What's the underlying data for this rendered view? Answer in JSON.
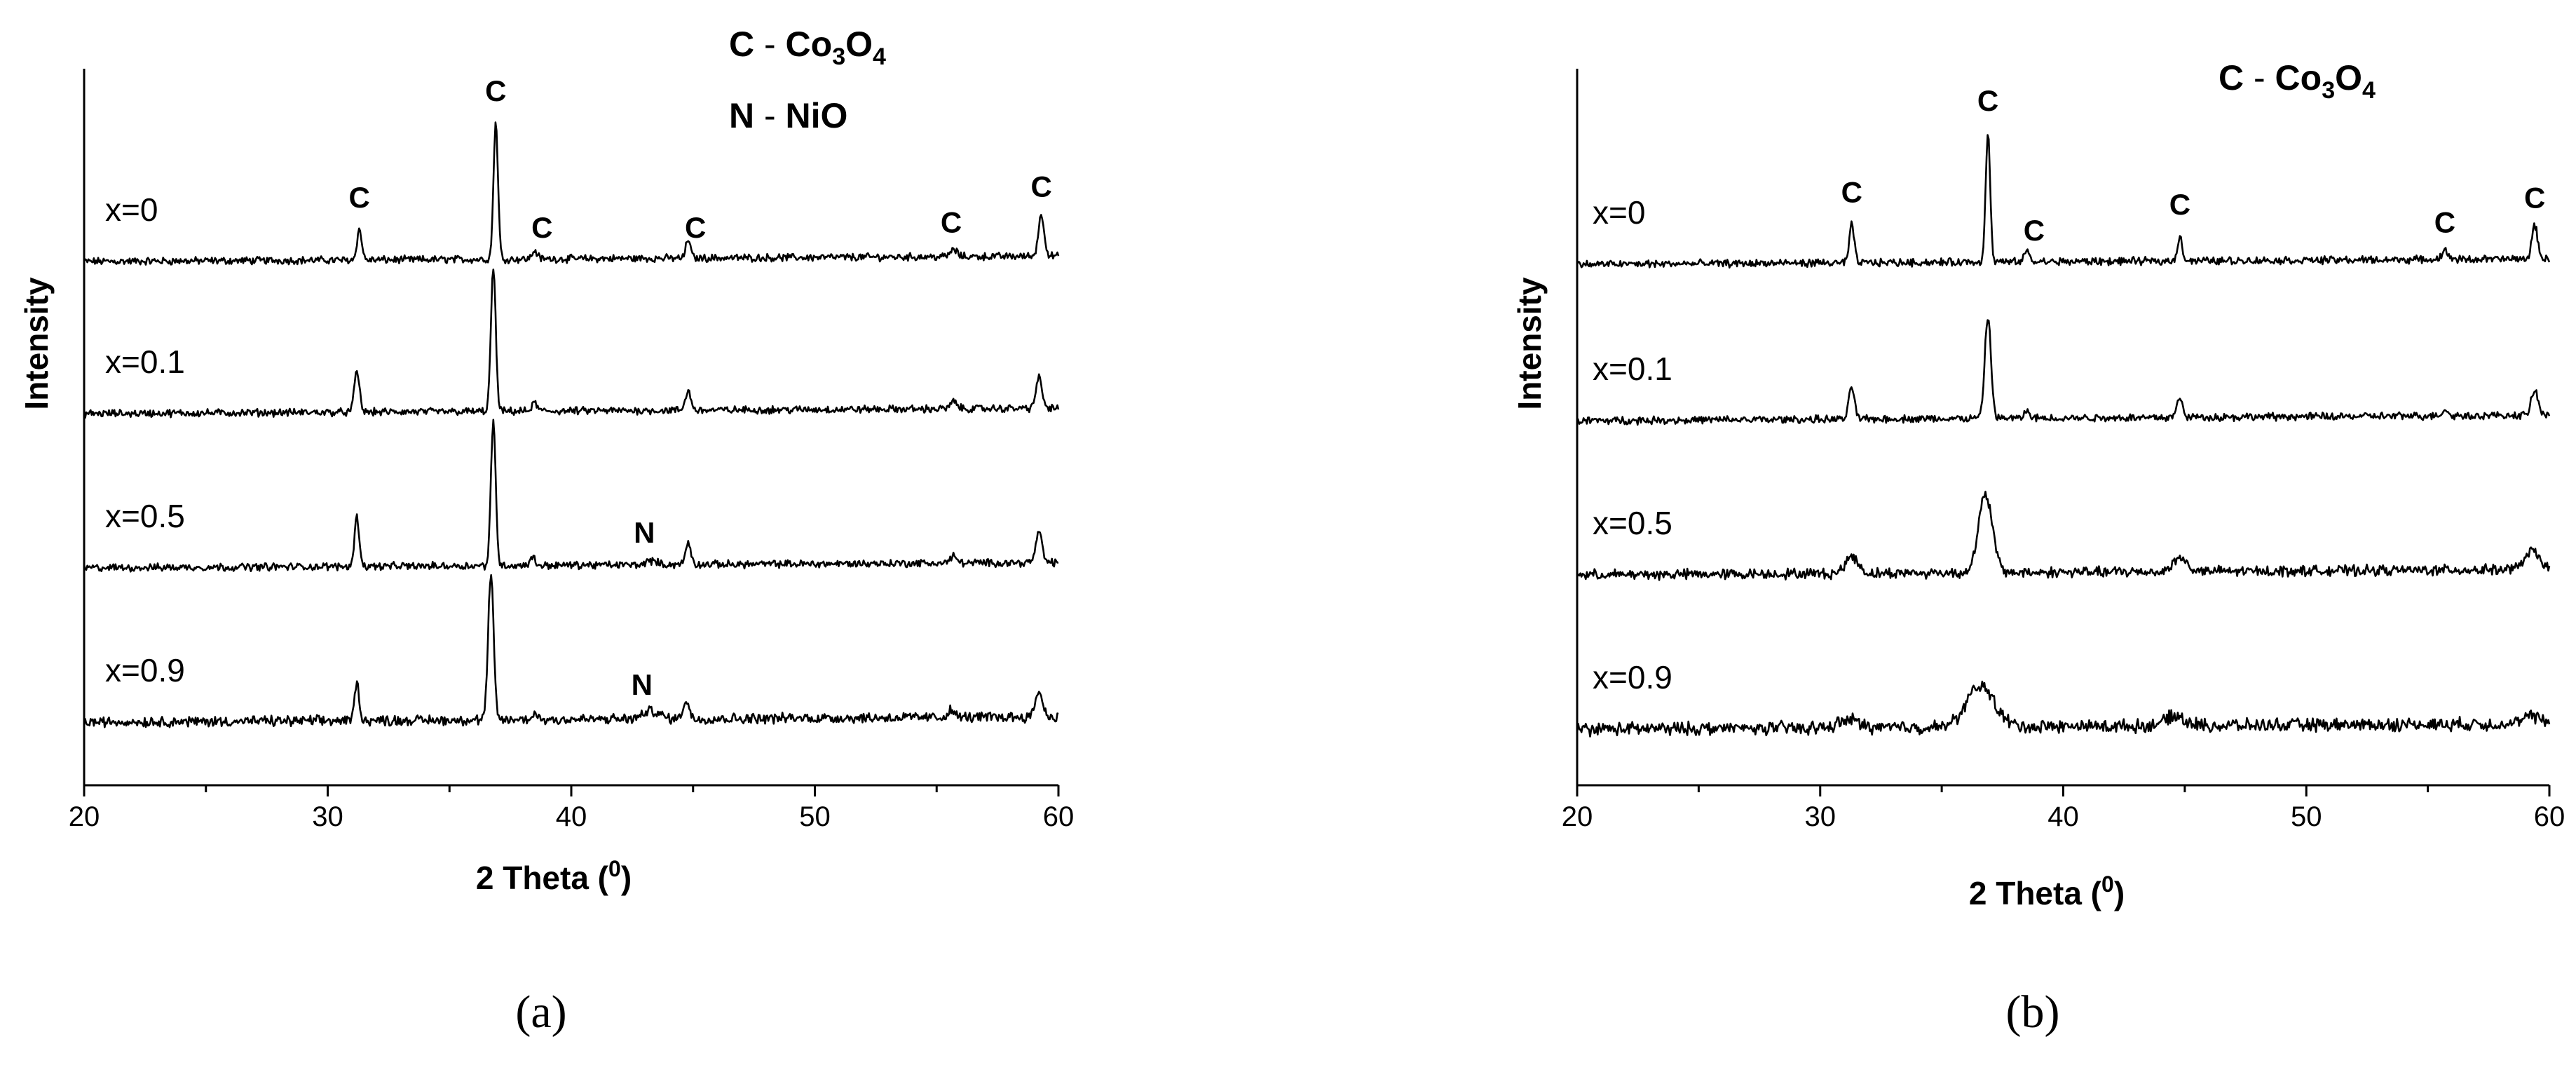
{
  "chart_data": [
    {
      "type": "line",
      "panel": "(a)",
      "caption": "(a)",
      "xlabel": "2 Theta (",
      "xlabel_sup": "0",
      "xlabel_end": ")",
      "ylabel": "Intensity",
      "xlim": [
        20,
        60
      ],
      "xticks": [
        20,
        30,
        40,
        50,
        60
      ],
      "yticks": "none",
      "legend": [
        {
          "letter": "C",
          "dash": " - ",
          "formula": [
            [
              "Co",
              ""
            ],
            [
              "3",
              "sub"
            ],
            [
              "O",
              ""
            ],
            [
              "4",
              "sub"
            ]
          ]
        },
        {
          "letter": "N",
          "dash": " - ",
          "formula": [
            [
              "NiO",
              ""
            ]
          ]
        }
      ],
      "series": [
        {
          "name": "x=0",
          "offset": 3,
          "noise": 0.022,
          "peaks": [
            [
              31.3,
              0.22,
              0.14
            ],
            [
              36.9,
              1.0,
              0.13
            ],
            [
              38.5,
              0.06,
              0.15
            ],
            [
              44.8,
              0.14,
              0.13
            ],
            [
              55.7,
              0.05,
              0.2
            ],
            [
              59.3,
              0.3,
              0.17
            ]
          ],
          "labels": [
            [
              "C",
              31.3
            ],
            [
              "C",
              36.9
            ],
            [
              "C",
              38.8
            ],
            [
              "C",
              45.1
            ],
            [
              "C",
              55.6
            ],
            [
              "C",
              59.3
            ]
          ]
        },
        {
          "name": "x=0.1",
          "offset": 2,
          "noise": 0.022,
          "peaks": [
            [
              31.2,
              0.3,
              0.15
            ],
            [
              36.8,
              1.05,
              0.14
            ],
            [
              38.5,
              0.06,
              0.15
            ],
            [
              44.8,
              0.14,
              0.16
            ],
            [
              55.7,
              0.05,
              0.2
            ],
            [
              59.2,
              0.22,
              0.18
            ]
          ],
          "labels": []
        },
        {
          "name": "x=0.5",
          "offset": 1,
          "noise": 0.022,
          "peaks": [
            [
              31.2,
              0.36,
              0.14
            ],
            [
              36.8,
              1.05,
              0.14
            ],
            [
              38.4,
              0.06,
              0.15
            ],
            [
              43.3,
              0.03,
              0.3
            ],
            [
              44.8,
              0.16,
              0.15
            ],
            [
              55.7,
              0.05,
              0.2
            ],
            [
              59.2,
              0.22,
              0.18
            ]
          ],
          "labels": [
            [
              "N",
              43.0
            ]
          ]
        },
        {
          "name": "x=0.9",
          "offset": 0,
          "noise": 0.03,
          "peaks": [
            [
              31.2,
              0.27,
              0.14
            ],
            [
              36.7,
              1.05,
              0.16
            ],
            [
              38.5,
              0.05,
              0.15
            ],
            [
              43.3,
              0.06,
              0.45
            ],
            [
              44.7,
              0.13,
              0.18
            ],
            [
              55.6,
              0.05,
              0.2
            ],
            [
              59.2,
              0.19,
              0.2
            ]
          ],
          "labels": [
            [
              "N",
              42.9
            ]
          ]
        }
      ]
    },
    {
      "type": "line",
      "panel": "(b)",
      "caption": "(b)",
      "xlabel": "2 Theta (",
      "xlabel_sup": "0",
      "xlabel_end": ")",
      "ylabel": "Intensity",
      "xlim": [
        20,
        60
      ],
      "xticks": [
        20,
        30,
        40,
        50,
        60
      ],
      "yticks": "none",
      "legend": [
        {
          "letter": "C",
          "dash": " - ",
          "formula": [
            [
              "Co",
              ""
            ],
            [
              "3",
              "sub"
            ],
            [
              "O",
              ""
            ],
            [
              "4",
              "sub"
            ]
          ]
        }
      ],
      "series": [
        {
          "name": "x=0",
          "offset": 3,
          "noise": 0.022,
          "peaks": [
            [
              31.3,
              0.28,
              0.14
            ],
            [
              36.9,
              0.95,
              0.13
            ],
            [
              38.5,
              0.08,
              0.15
            ],
            [
              44.8,
              0.19,
              0.13
            ],
            [
              55.7,
              0.06,
              0.2
            ],
            [
              59.4,
              0.24,
              0.17
            ]
          ],
          "labels": [
            [
              "C",
              31.3
            ],
            [
              "C",
              36.9
            ],
            [
              "C",
              38.8
            ],
            [
              "C",
              44.8
            ],
            [
              "C",
              55.7
            ],
            [
              "C",
              59.4
            ]
          ]
        },
        {
          "name": "x=0.1",
          "offset": 2,
          "noise": 0.022,
          "peaks": [
            [
              31.3,
              0.24,
              0.16
            ],
            [
              36.9,
              0.74,
              0.18
            ],
            [
              38.5,
              0.05,
              0.15
            ],
            [
              44.8,
              0.13,
              0.18
            ],
            [
              55.7,
              0.04,
              0.2
            ],
            [
              59.4,
              0.18,
              0.2
            ]
          ],
          "labels": []
        },
        {
          "name": "x=0.5",
          "offset": 1,
          "noise": 0.03,
          "peaks": [
            [
              31.3,
              0.13,
              0.35
            ],
            [
              36.8,
              0.57,
              0.4
            ],
            [
              44.8,
              0.1,
              0.4
            ],
            [
              59.3,
              0.13,
              0.45
            ]
          ],
          "labels": []
        },
        {
          "name": "x=0.9",
          "offset": 0,
          "noise": 0.038,
          "peaks": [
            [
              31.2,
              0.06,
              0.55
            ],
            [
              36.6,
              0.3,
              0.8
            ],
            [
              44.6,
              0.07,
              0.6
            ],
            [
              59.3,
              0.05,
              0.6
            ]
          ],
          "labels": []
        }
      ]
    }
  ]
}
